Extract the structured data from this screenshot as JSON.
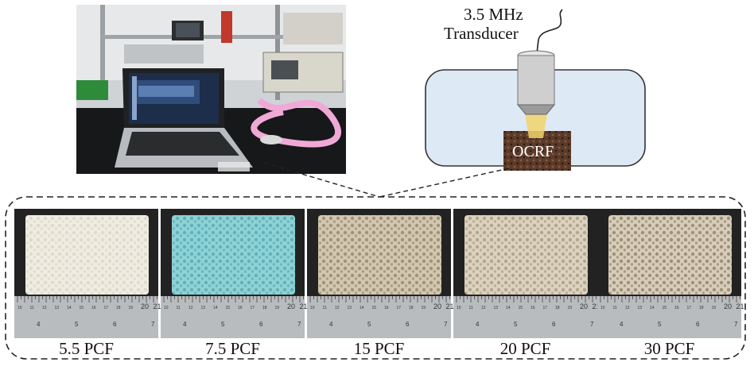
{
  "schematic": {
    "transducer_label_line1": "3.5 MHz",
    "transducer_label_line2": "Transducer",
    "sample_label": "OCRF"
  },
  "samples": [
    {
      "label": "5.5 PCF",
      "foam_color": "#efece1",
      "pore_color": "#d9d4c4"
    },
    {
      "label": "7.5 PCF",
      "foam_color": "#8fd2d6",
      "pore_color": "#4fa7ae"
    },
    {
      "label": "15 PCF",
      "foam_color": "#d3c7b0",
      "pore_color": "#8f816b"
    },
    {
      "label": "20 PCF",
      "foam_color": "#dcd2bd",
      "pore_color": "#a39680"
    },
    {
      "label": "30 PCF",
      "foam_color": "#d8cdb8",
      "pore_color": "#8a7c66"
    }
  ],
  "ruler_ticks": [
    "10",
    "11",
    "12",
    "13",
    "14",
    "15",
    "16",
    "17",
    "18",
    "19",
    "20",
    "21"
  ],
  "ruler_ticks_bottom": [
    "4",
    "5",
    "6",
    "7"
  ],
  "colors": {
    "water_tank": "#dde9f5",
    "tank_border": "#333333",
    "ruler": "#b9bcbf",
    "panel_background": "#222222"
  }
}
